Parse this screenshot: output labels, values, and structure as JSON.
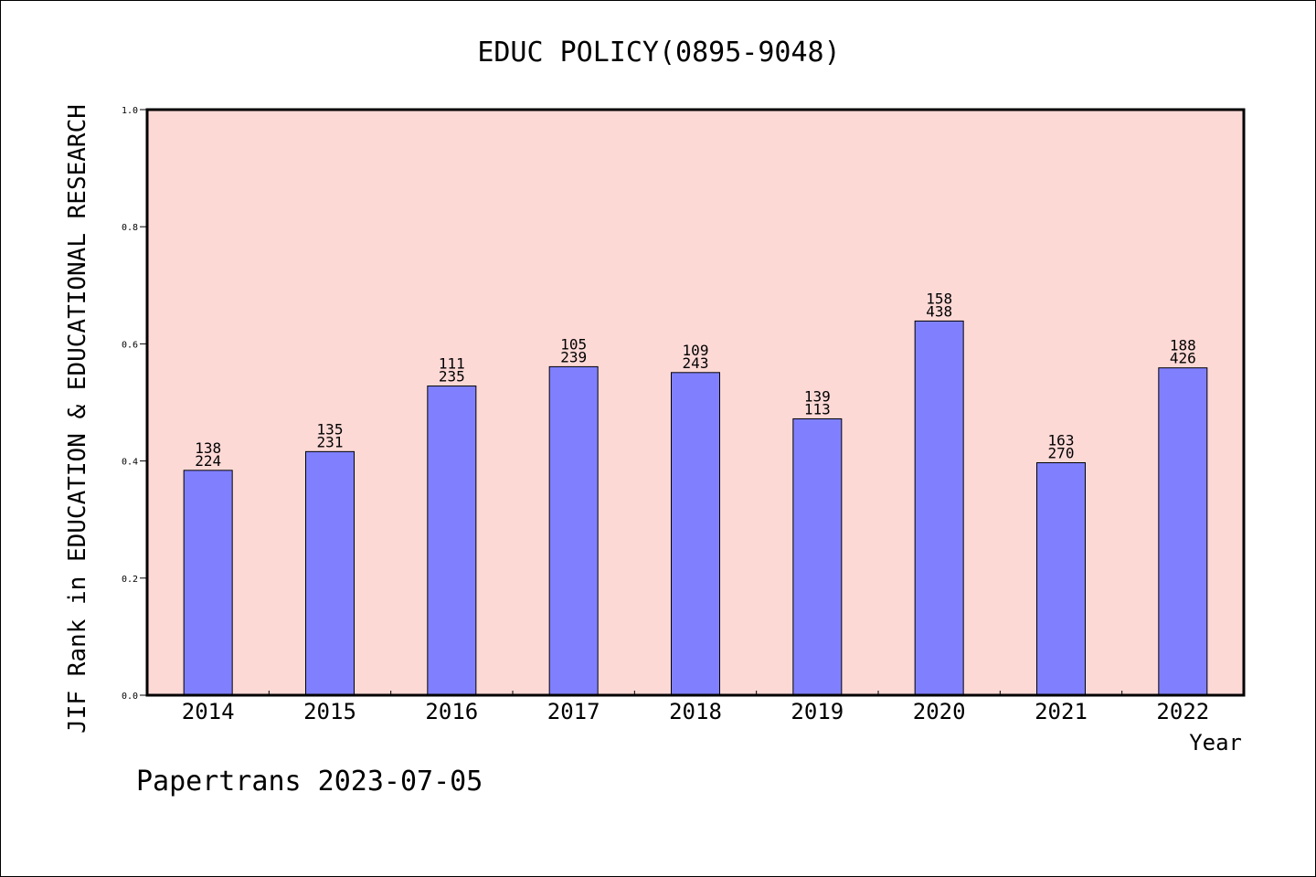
{
  "chart_data": {
    "type": "bar",
    "title": "EDUC POLICY(0895-9048)",
    "xlabel": "Year",
    "ylabel": "JIF Rank in EDUCATION & EDUCATIONAL RESEARCH",
    "ylim": [
      0,
      1.0
    ],
    "yticks": [
      "0.0",
      "0.2",
      "0.4",
      "0.6",
      "0.8",
      "1.0"
    ],
    "grid": false,
    "categories": [
      "2014",
      "2015",
      "2016",
      "2017",
      "2018",
      "2019",
      "2020",
      "2021",
      "2022"
    ],
    "values": [
      0.384,
      0.416,
      0.528,
      0.561,
      0.551,
      0.472,
      0.639,
      0.397,
      0.559
    ],
    "labels_top": [
      "138",
      "135",
      "111",
      "105",
      "109",
      "139",
      "158",
      "163",
      "188"
    ],
    "labels_bottom": [
      "224",
      "231",
      "235",
      "239",
      "243",
      "113",
      "438",
      "270",
      "426"
    ],
    "colors": {
      "plot_bg": "#fdd9d6",
      "bar": "#8080ff",
      "axis": "#000000"
    }
  },
  "footer": "Papertrans 2023-07-05"
}
